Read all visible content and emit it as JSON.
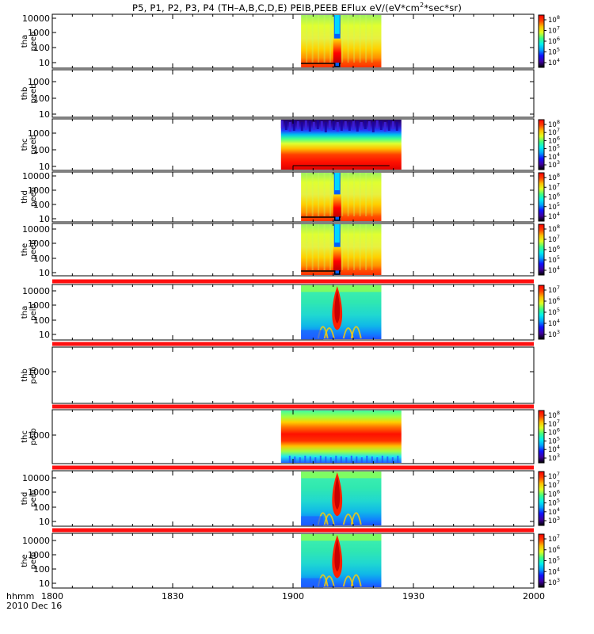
{
  "title_parts": {
    "pre": "P5, P1, P2, P3, P4 (TH–A,B,C,D,E) PEIB,PEEB EFlux eV/(eV*cm",
    "sup": "2",
    "post": "*sec*sr)"
  },
  "colors": {
    "red_bar": "#ff1010",
    "black": "#000000",
    "white": "#ffffff"
  },
  "colormap": [
    "#000000",
    "#4000a0",
    "#1010ff",
    "#00a0ff",
    "#00f0f0",
    "#40ff80",
    "#e0ff20",
    "#ffc000",
    "#ff4000",
    "#ff0000"
  ],
  "x_axis": {
    "unit_label": "hhmm",
    "date_label": "2010 Dec 16",
    "ticks": [
      "1800",
      "1830",
      "1900",
      "1930",
      "2000"
    ],
    "tick_values_min": [
      0,
      30,
      60,
      90,
      120
    ],
    "range_min": [
      0,
      120
    ]
  },
  "chart_data": {
    "type": "heatmap",
    "title": "P5, P1, P2, P3, P4 (TH–A,B,C,D,E) PEIB,PEEB EFlux eV/(eV*cm^2*sec*sr)",
    "x_unit": "hhmm",
    "x_range": [
      "1800",
      "2000"
    ],
    "y_scale": "log",
    "colorbar_scale": "log",
    "panels": [
      {
        "probe": "tha",
        "product": "peeb",
        "ylabel": [
          "tha",
          "peeb"
        ],
        "yticks": [
          "10",
          "100",
          "1000",
          "10000"
        ],
        "has_data": true,
        "data_start": "1902",
        "data_end": "1922",
        "colorbar_ticks": [
          "10",
          "7",
          "6",
          "5",
          "4"
        ],
        "colorbar_exp_top": "8",
        "colorbar_range_exp": [
          3.6,
          8.6
        ],
        "red_bar": false
      },
      {
        "probe": "thb",
        "product": "peeb",
        "ylabel": [
          "thb",
          "peeb"
        ],
        "yticks": [
          "10",
          "100",
          "1000"
        ],
        "has_data": false,
        "colorbar_ticks": [],
        "red_bar": false
      },
      {
        "probe": "thc",
        "product": "peeb",
        "ylabel": [
          "thc",
          "peeb"
        ],
        "yticks": [
          "10",
          "100",
          "1000"
        ],
        "has_data": true,
        "data_start": "1857",
        "data_end": "1927",
        "colorbar_ticks": [
          "10",
          "7",
          "6",
          "5",
          "4",
          "3"
        ],
        "colorbar_exp_top": "8",
        "colorbar_range_exp": [
          3,
          8
        ],
        "red_bar": false
      },
      {
        "probe": "thd",
        "product": "peeb",
        "ylabel": [
          "thd",
          "peeb"
        ],
        "yticks": [
          "10",
          "100",
          "1000",
          "10000"
        ],
        "has_data": true,
        "data_start": "1902",
        "data_end": "1922",
        "colorbar_ticks": [
          "10",
          "7",
          "6",
          "5",
          "4"
        ],
        "colorbar_exp_top": "8",
        "colorbar_range_exp": [
          3.6,
          8.6
        ],
        "red_bar": false
      },
      {
        "probe": "the",
        "product": "peeb",
        "ylabel": [
          "the",
          "peeb"
        ],
        "yticks": [
          "10",
          "100",
          "1000",
          "10000"
        ],
        "has_data": true,
        "data_start": "1902",
        "data_end": "1922",
        "colorbar_ticks": [
          "10",
          "7",
          "6",
          "5",
          "4"
        ],
        "colorbar_exp_top": "8",
        "colorbar_range_exp": [
          3.6,
          8.6
        ],
        "red_bar": true
      },
      {
        "probe": "tha",
        "product": "peib",
        "ylabel": [
          "tha",
          "peib"
        ],
        "yticks": [
          "10",
          "100",
          "1000",
          "10000"
        ],
        "has_data": true,
        "data_start": "1902",
        "data_end": "1922",
        "colorbar_ticks": [
          "10",
          "6",
          "5",
          "4",
          "3"
        ],
        "colorbar_exp_top": "7",
        "colorbar_range_exp": [
          2.8,
          7.4
        ],
        "red_bar": true
      },
      {
        "probe": "thb",
        "product": "peib",
        "ylabel": [
          "thb",
          "peib"
        ],
        "yticks": [
          "1000"
        ],
        "has_data": false,
        "colorbar_ticks": [],
        "red_bar": true
      },
      {
        "probe": "thc",
        "product": "peib",
        "ylabel": [
          "thc",
          "peib"
        ],
        "yticks": [
          "1000"
        ],
        "has_data": true,
        "data_start": "1857",
        "data_end": "1927",
        "colorbar_ticks": [
          "10",
          "7",
          "6",
          "5",
          "4",
          "3"
        ],
        "colorbar_exp_top": "8",
        "colorbar_range_exp": [
          2.7,
          8.2
        ],
        "red_bar": true
      },
      {
        "probe": "thd",
        "product": "peib",
        "ylabel": [
          "thd",
          "peib"
        ],
        "yticks": [
          "10",
          "100",
          "1000",
          "10000"
        ],
        "has_data": true,
        "data_start": "1902",
        "data_end": "1922",
        "colorbar_ticks": [
          "10",
          "7",
          "6",
          "5",
          "4",
          "3"
        ],
        "colorbar_exp_top": "7",
        "colorbar_range_exp": [
          2.7,
          7.4
        ],
        "red_bar": true
      },
      {
        "probe": "the",
        "product": "peib",
        "ylabel": [
          "the",
          "peib"
        ],
        "yticks": [
          "10",
          "100",
          "1000",
          "10000"
        ],
        "has_data": true,
        "data_start": "1902",
        "data_end": "1922",
        "colorbar_ticks": [
          "10",
          "6",
          "5",
          "4",
          "3"
        ],
        "colorbar_exp_top": "7",
        "colorbar_range_exp": [
          2.8,
          7.4
        ],
        "red_bar": false
      }
    ]
  }
}
